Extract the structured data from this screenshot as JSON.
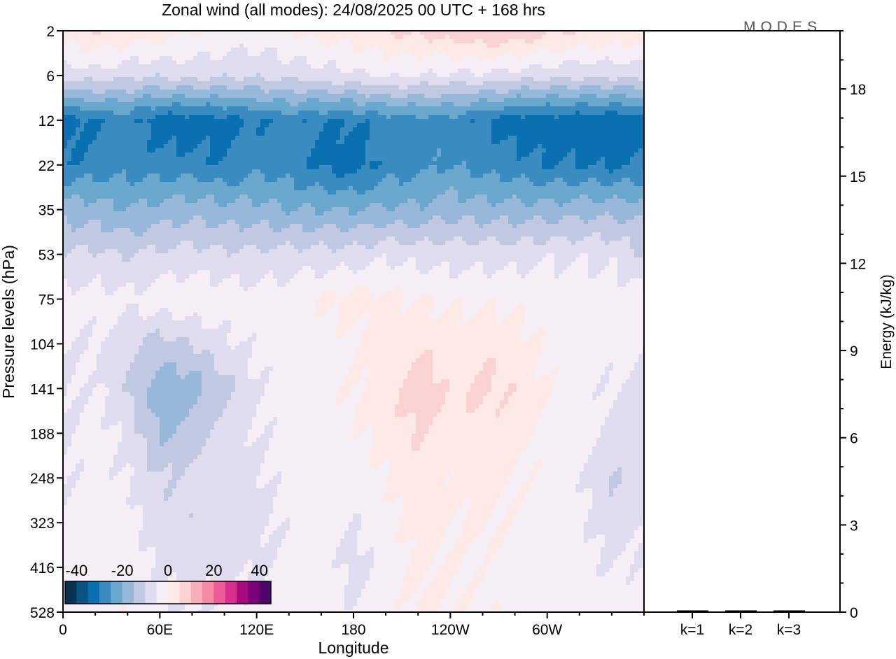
{
  "chart_data": {
    "type": "heatmap",
    "title": "Zonal wind (all modes):  24/08/2025  00 UTC  + 168 hrs",
    "logo": "MODES",
    "xlabel": "Longitude",
    "ylabel": "Pressure levels (hPa)",
    "x_ticks": [
      {
        "lon": 0,
        "label": "0"
      },
      {
        "lon": 60,
        "label": "60E"
      },
      {
        "lon": 120,
        "label": "120E"
      },
      {
        "lon": 180,
        "label": "180"
      },
      {
        "lon": 240,
        "label": "120W"
      },
      {
        "lon": 300,
        "label": "60W"
      }
    ],
    "x_range": [
      0,
      360
    ],
    "pressure_levels": [
      "2",
      "6",
      "12",
      "22",
      "35",
      "53",
      "75",
      "104",
      "141",
      "188",
      "248",
      "323",
      "416",
      "528"
    ],
    "colorbar": {
      "levels_start": -45,
      "levels_step": 5,
      "tick_values": [
        -40,
        -20,
        0,
        20,
        40
      ],
      "tick_labels": [
        "-40",
        "-20",
        "0",
        "20",
        "40"
      ],
      "colors": [
        "#08324f",
        "#0a5484",
        "#0b70b0",
        "#3a8cc0",
        "#6aa7cc",
        "#97b8d8",
        "#c0c8e2",
        "#dedcee",
        "#f5eef5",
        "#fde9e6",
        "#fbd2d2",
        "#f8b0b8",
        "#f58aa8",
        "#ec5c9a",
        "#d7308e",
        "#a9087e",
        "#7a0177",
        "#4d056b"
      ]
    },
    "field_lon": [
      0,
      20,
      40,
      60,
      80,
      100,
      120,
      140,
      160,
      180,
      200,
      220,
      240,
      260,
      280,
      300,
      320,
      340,
      360
    ],
    "field_wind_ms": [
      [
        3,
        5,
        4,
        2,
        0,
        -1,
        -2,
        0,
        2,
        3,
        5,
        6,
        8,
        10,
        9,
        6,
        5,
        4,
        3
      ],
      [
        -8,
        -7,
        -9,
        -9,
        -8,
        -9,
        -9,
        -8,
        -7,
        -6,
        -4,
        -5,
        -6,
        -6,
        -7,
        -8,
        -9,
        -9,
        -8
      ],
      [
        -33,
        -30,
        -28,
        -33,
        -33,
        -32,
        -30,
        -28,
        -30,
        -30,
        -28,
        -27,
        -27,
        -30,
        -33,
        -33,
        -33,
        -34,
        -33
      ],
      [
        -30,
        -28,
        -27,
        -28,
        -28,
        -30,
        -27,
        -28,
        -31,
        -33,
        -28,
        -27,
        -25,
        -27,
        -28,
        -30,
        -30,
        -31,
        -30
      ],
      [
        -17,
        -18,
        -20,
        -18,
        -17,
        -18,
        -18,
        -20,
        -20,
        -20,
        -19,
        -19,
        -17,
        -18,
        -18,
        -18,
        -17,
        -17,
        -17
      ],
      [
        -10,
        -9,
        -10,
        -9,
        -8,
        -9,
        -9,
        -8,
        -8,
        -8,
        -6,
        -7,
        -7,
        -7,
        -7,
        -6,
        -6,
        -6,
        -10
      ],
      [
        -3,
        -3,
        -4,
        -2,
        -1,
        -2,
        -3,
        -2,
        0,
        2,
        1,
        0,
        -1,
        -1,
        -1,
        -2,
        -2,
        -3,
        -3
      ],
      [
        -5,
        -5,
        -8,
        -12,
        -10,
        -6,
        -4,
        -3,
        -2,
        -1,
        2,
        4,
        2,
        4,
        2,
        -1,
        -2,
        -3,
        -5
      ],
      [
        -6,
        -4,
        -10,
        -18,
        -18,
        -12,
        -5,
        -3,
        -2,
        0,
        3,
        9,
        4,
        6,
        4,
        0,
        -3,
        -5,
        -6
      ],
      [
        -6,
        -3,
        -6,
        -16,
        -13,
        -8,
        -5,
        -3,
        -2,
        -1,
        2,
        5,
        2,
        4,
        2,
        -1,
        -2,
        -6,
        -8
      ],
      [
        -5,
        -3,
        -5,
        -10,
        -8,
        -7,
        -6,
        -3,
        -1,
        -3,
        0,
        3,
        1,
        2,
        0,
        -2,
        -4,
        -10,
        -8
      ],
      [
        -4,
        -3,
        -3,
        -8,
        -9,
        -8,
        -7,
        -4,
        -2,
        -5,
        -2,
        2,
        0,
        1,
        -1,
        -3,
        -4,
        -8,
        -6
      ],
      [
        -3,
        -2,
        -2,
        -6,
        -7,
        -6,
        -6,
        -3,
        -2,
        -7,
        -3,
        1,
        0,
        -1,
        -2,
        -3,
        -3,
        -5,
        -4
      ],
      [
        -2,
        -1,
        -1,
        -4,
        -5,
        -4,
        -3,
        -2,
        -1,
        -5,
        -2,
        1,
        0,
        -1,
        -1,
        -2,
        -2,
        -3,
        -2
      ]
    ],
    "energy_panel": {
      "ylabel": "Energy (kJ/kg)",
      "ylim": [
        0,
        20
      ],
      "y_ticks": [
        "0",
        "3",
        "6",
        "9",
        "12",
        "15",
        "18"
      ],
      "categories": [
        "k=1",
        "k=2",
        "k=3"
      ],
      "values": [
        0.03,
        0.03,
        0.02
      ]
    }
  }
}
